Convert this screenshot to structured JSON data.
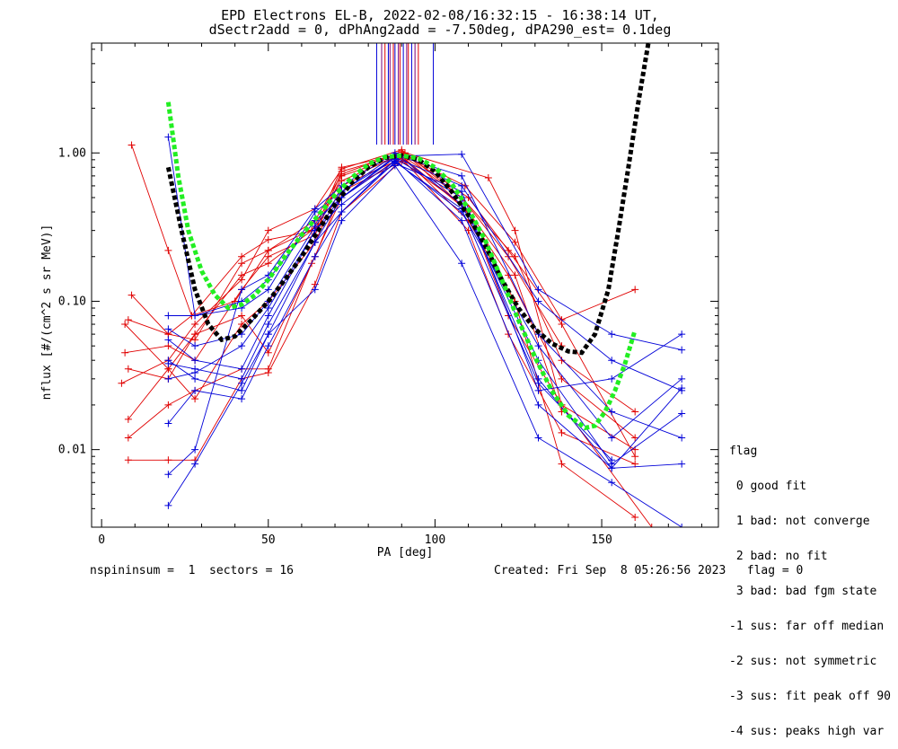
{
  "header": {
    "title_line1": "EPD Electrons EL-B, 2022-02-08/16:32:15 - 16:38:14 UT,",
    "title_line2": "dSectr2add = 0, dPhAng2add = -7.50deg, dPA290_est=   0.1deg"
  },
  "footer": {
    "left": "nspininsum =  1  sectors = 16",
    "right": "Created: Fri Sep  8 05:26:56 2023   flag = 0"
  },
  "legend": {
    "title": "flag",
    "items": [
      " 0 good fit",
      " 1 bad: not converge",
      " 2 bad: no fit",
      " 3 bad: bad fgm state",
      "-1 sus: far off median",
      "-2 sus: not symmetric",
      "-3 sus: fit peak off 90",
      "-4 sus: peaks high var"
    ]
  },
  "colors": {
    "red": "#e00000",
    "blue": "#0000d8",
    "green": "#22ee22",
    "black": "#000000",
    "purple": "#7a0078"
  },
  "chart_data": {
    "type": "line",
    "xlabel": "PA [deg]",
    "ylabel": "nflux [#/(cm^2 s sr MeV)]",
    "xlim": [
      -3,
      185
    ],
    "ylim": [
      0.003,
      5.5
    ],
    "yscale": "log",
    "x_ticks": [
      0,
      50,
      100,
      150
    ],
    "x_tick_labels": [
      "0",
      "50",
      "100",
      "150"
    ],
    "y_ticks": [
      0.01,
      0.1,
      1.0
    ],
    "y_tick_labels": [
      "0.01",
      "0.10",
      "1.00"
    ],
    "peak_markers_pa": [
      82.5,
      84,
      85,
      86,
      86.5,
      87.5,
      88,
      89,
      89.5,
      90.5,
      91.5,
      92,
      93,
      94,
      95,
      99.5
    ],
    "series": [
      {
        "color": "red",
        "x": [
          7,
          20,
          28,
          42,
          50,
          64,
          72,
          90,
          110,
          122,
          138,
          160
        ],
        "y": [
          0.07,
          0.035,
          0.022,
          0.07,
          0.1,
          0.25,
          0.6,
          0.92,
          0.3,
          0.06,
          0.013,
          0.008
        ]
      },
      {
        "color": "red",
        "x": [
          9,
          20,
          27,
          40,
          50,
          65,
          72,
          91,
          108,
          124,
          138,
          160
        ],
        "y": [
          0.11,
          0.06,
          0.08,
          0.1,
          0.22,
          0.32,
          0.75,
          1.0,
          0.5,
          0.2,
          0.04,
          0.018
        ]
      },
      {
        "color": "red",
        "x": [
          8,
          20,
          28,
          42,
          50,
          63,
          72,
          90,
          110,
          122,
          138,
          160
        ],
        "y": [
          0.012,
          0.02,
          0.025,
          0.035,
          0.035,
          0.18,
          0.5,
          0.95,
          0.4,
          0.08,
          0.02,
          0.01
        ]
      },
      {
        "color": "red",
        "x": [
          8,
          20,
          28,
          42,
          50,
          64,
          72,
          90,
          108,
          122,
          138,
          160
        ],
        "y": [
          0.0085,
          0.0085,
          0.0085,
          0.03,
          0.033,
          0.13,
          0.4,
          0.88,
          0.45,
          0.15,
          0.03,
          0.012
        ]
      },
      {
        "color": "red",
        "x": [
          9,
          20,
          27,
          42,
          50,
          64,
          72,
          90,
          109,
          124,
          138,
          160
        ],
        "y": [
          1.13,
          0.22,
          0.08,
          0.2,
          0.26,
          0.3,
          0.8,
          0.98,
          0.6,
          0.25,
          0.075,
          0.12
        ]
      },
      {
        "color": "red",
        "x": [
          7,
          20,
          28,
          42,
          50,
          64,
          72,
          91,
          110,
          122,
          138,
          160
        ],
        "y": [
          0.045,
          0.05,
          0.04,
          0.12,
          0.2,
          0.28,
          0.7,
          0.98,
          0.5,
          0.22,
          0.07,
          0.009
        ]
      },
      {
        "color": "red",
        "x": [
          8,
          20,
          28,
          42,
          50,
          63,
          72,
          90,
          108,
          122,
          138
        ],
        "y": [
          0.035,
          0.03,
          0.06,
          0.15,
          0.18,
          0.3,
          0.65,
          0.97,
          0.5,
          0.2,
          0.05
        ]
      },
      {
        "color": "red",
        "x": [
          8,
          20,
          28,
          42,
          50,
          64,
          72,
          90,
          116,
          124,
          138,
          165
        ],
        "y": [
          0.075,
          0.06,
          0.055,
          0.18,
          0.22,
          0.35,
          0.72,
          1.02,
          0.68,
          0.3,
          0.02,
          0.003
        ]
      },
      {
        "color": "red",
        "x": [
          6,
          20,
          28,
          42,
          50,
          64,
          72,
          90,
          110,
          124,
          138
        ],
        "y": [
          0.028,
          0.04,
          0.07,
          0.14,
          0.3,
          0.42,
          0.78,
          1.05,
          0.4,
          0.15,
          0.018
        ]
      },
      {
        "color": "red",
        "x": [
          8,
          20,
          28,
          42,
          50,
          64,
          72,
          91,
          110,
          124,
          138,
          160
        ],
        "y": [
          0.016,
          0.035,
          0.06,
          0.08,
          0.045,
          0.2,
          0.55,
          0.9,
          0.35,
          0.1,
          0.008,
          0.0035
        ]
      },
      {
        "color": "blue",
        "x": [
          20,
          28,
          42,
          50,
          64,
          72,
          88,
          108,
          131,
          153,
          174
        ],
        "y": [
          1.28,
          0.08,
          0.09,
          0.12,
          0.4,
          0.55,
          0.92,
          0.5,
          0.03,
          0.0075,
          0.008
        ]
      },
      {
        "color": "blue",
        "x": [
          20,
          28,
          42,
          50,
          64,
          72,
          88,
          108,
          131,
          153,
          174
        ],
        "y": [
          0.08,
          0.08,
          0.1,
          0.14,
          0.35,
          0.5,
          0.95,
          0.98,
          0.12,
          0.06,
          0.047
        ]
      },
      {
        "color": "blue",
        "x": [
          20,
          28,
          42,
          50,
          64,
          72,
          88,
          108,
          131,
          153,
          174
        ],
        "y": [
          0.055,
          0.04,
          0.035,
          0.08,
          0.3,
          0.45,
          0.85,
          0.55,
          0.025,
          0.03,
          0.06
        ]
      },
      {
        "color": "blue",
        "x": [
          20,
          28,
          42,
          50,
          64,
          72,
          88,
          108,
          131,
          153,
          174
        ],
        "y": [
          0.038,
          0.035,
          0.03,
          0.07,
          0.25,
          0.5,
          0.88,
          0.4,
          0.05,
          0.012,
          0.03
        ]
      },
      {
        "color": "blue",
        "x": [
          20,
          28,
          42,
          50,
          64,
          72,
          88,
          108,
          131,
          153,
          174
        ],
        "y": [
          0.015,
          0.025,
          0.022,
          0.05,
          0.2,
          0.4,
          0.9,
          0.35,
          0.02,
          0.0075,
          0.026
        ]
      },
      {
        "color": "blue",
        "x": [
          20,
          28,
          42,
          50,
          64,
          72,
          88,
          108,
          131,
          153,
          174
        ],
        "y": [
          0.0068,
          0.01,
          0.12,
          0.15,
          0.42,
          0.6,
          1.0,
          0.45,
          0.04,
          0.008,
          0.0175
        ]
      },
      {
        "color": "blue",
        "x": [
          20,
          28,
          42,
          50,
          64,
          72,
          88,
          108,
          131,
          153,
          174
        ],
        "y": [
          0.0042,
          0.008,
          0.028,
          0.06,
          0.12,
          0.35,
          0.82,
          0.18,
          0.012,
          0.006,
          0.003
        ]
      },
      {
        "color": "blue",
        "x": [
          20,
          28,
          42,
          50,
          64,
          72,
          88,
          108,
          131,
          153,
          174
        ],
        "y": [
          0.03,
          0.033,
          0.05,
          0.09,
          0.3,
          0.5,
          0.93,
          0.6,
          0.1,
          0.04,
          0.025
        ]
      },
      {
        "color": "blue",
        "x": [
          20,
          28,
          42,
          50,
          64,
          72,
          88,
          108,
          131,
          153,
          174
        ],
        "y": [
          0.065,
          0.05,
          0.06,
          0.1,
          0.32,
          0.55,
          0.97,
          0.7,
          0.06,
          0.018,
          0.012
        ]
      },
      {
        "color": "blue",
        "x": [
          20,
          28,
          42,
          50,
          64,
          72,
          88,
          108,
          131,
          153
        ],
        "y": [
          0.04,
          0.03,
          0.025,
          0.06,
          0.25,
          0.4,
          0.87,
          0.42,
          0.028,
          0.0085
        ]
      }
    ],
    "fits": [
      {
        "color": "black",
        "x": [
          20,
          24,
          28,
          32,
          36,
          40,
          45,
          50,
          55,
          60,
          65,
          70,
          75,
          80,
          85,
          90,
          95,
          100,
          105,
          110,
          115,
          120,
          125,
          130,
          135,
          140,
          144,
          148,
          152,
          155,
          158,
          161,
          164,
          167,
          170
        ],
        "y": [
          0.8,
          0.3,
          0.12,
          0.07,
          0.055,
          0.058,
          0.075,
          0.1,
          0.14,
          0.2,
          0.3,
          0.45,
          0.63,
          0.8,
          0.93,
          0.96,
          0.9,
          0.75,
          0.55,
          0.38,
          0.24,
          0.14,
          0.09,
          0.065,
          0.052,
          0.046,
          0.045,
          0.06,
          0.12,
          0.3,
          0.8,
          2.2,
          5.5,
          12,
          25
        ]
      },
      {
        "color": "green",
        "x": [
          20,
          23,
          26,
          30,
          34,
          38,
          42,
          46,
          50,
          55,
          60,
          65,
          70,
          75,
          80,
          85,
          90,
          95,
          100,
          105,
          110,
          115,
          120,
          125,
          130,
          135,
          140,
          145,
          148,
          151,
          154,
          157,
          160
        ],
        "y": [
          2.2,
          0.7,
          0.3,
          0.16,
          0.11,
          0.09,
          0.095,
          0.11,
          0.14,
          0.2,
          0.28,
          0.38,
          0.52,
          0.68,
          0.84,
          0.94,
          0.96,
          0.92,
          0.8,
          0.62,
          0.42,
          0.26,
          0.14,
          0.075,
          0.042,
          0.025,
          0.017,
          0.014,
          0.0145,
          0.018,
          0.025,
          0.038,
          0.064
        ]
      }
    ]
  }
}
